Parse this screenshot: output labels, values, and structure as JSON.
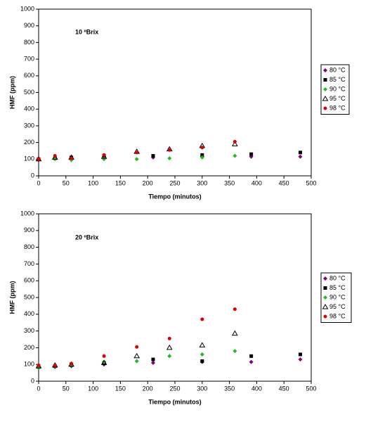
{
  "chart_data": [
    {
      "type": "scatter",
      "annotation": "10 ºBrix",
      "xlabel": "Tiempo (minutos)",
      "ylabel": "HMF (ppm)",
      "xlim": [
        0,
        500
      ],
      "xticks": [
        0,
        50,
        100,
        150,
        200,
        250,
        300,
        350,
        400,
        450,
        500
      ],
      "ylim": [
        0,
        1000
      ],
      "yticks": [
        0,
        100,
        200,
        300,
        400,
        500,
        600,
        700,
        800,
        900,
        1000
      ],
      "legend": "right",
      "series": [
        {
          "name": "80 °C",
          "color": "#800080",
          "marker": "diamond",
          "x": [
            0,
            30,
            60,
            120,
            210,
            300,
            390,
            480
          ],
          "values": [
            95,
            105,
            105,
            115,
            110,
            115,
            115,
            115
          ]
        },
        {
          "name": "85 °C",
          "color": "#000000",
          "marker": "square",
          "x": [
            0,
            30,
            60,
            120,
            210,
            300,
            390,
            480
          ],
          "values": [
            100,
            105,
            110,
            120,
            120,
            125,
            130,
            140
          ]
        },
        {
          "name": "90 °C",
          "color": "#22bb22",
          "marker": "diamond",
          "x": [
            0,
            30,
            60,
            120,
            180,
            240,
            300,
            360
          ],
          "values": [
            100,
            100,
            95,
            100,
            100,
            105,
            110,
            120
          ]
        },
        {
          "name": "95 °C",
          "color": "#000000",
          "marker": "triangle",
          "x": [
            0,
            30,
            60,
            120,
            180,
            240,
            300,
            360
          ],
          "values": [
            100,
            110,
            110,
            115,
            145,
            160,
            180,
            190
          ]
        },
        {
          "name": "98 °C",
          "color": "#dd0000",
          "marker": "circle",
          "x": [
            0,
            30,
            60,
            120,
            180,
            240,
            300,
            360
          ],
          "values": [
            100,
            120,
            105,
            125,
            140,
            155,
            170,
            205
          ]
        }
      ]
    },
    {
      "type": "scatter",
      "annotation": "20 ºBrix",
      "xlabel": "Tiempo (minutos)",
      "ylabel": "HMF (ppm)",
      "xlim": [
        0,
        500
      ],
      "xticks": [
        0,
        50,
        100,
        150,
        200,
        250,
        300,
        350,
        400,
        450,
        500
      ],
      "ylim": [
        0,
        1000
      ],
      "yticks": [
        0,
        100,
        200,
        300,
        400,
        500,
        600,
        700,
        800,
        900,
        1000
      ],
      "legend": "right",
      "series": [
        {
          "name": "80 °C",
          "color": "#800080",
          "marker": "diamond",
          "x": [
            0,
            30,
            60,
            120,
            210,
            300,
            390,
            480
          ],
          "values": [
            80,
            85,
            90,
            100,
            110,
            115,
            115,
            130
          ]
        },
        {
          "name": "85 °C",
          "color": "#000000",
          "marker": "square",
          "x": [
            0,
            30,
            60,
            120,
            210,
            300,
            390,
            480
          ],
          "values": [
            85,
            90,
            100,
            110,
            130,
            120,
            150,
            160
          ]
        },
        {
          "name": "90 °C",
          "color": "#22bb22",
          "marker": "diamond",
          "x": [
            0,
            30,
            60,
            120,
            180,
            240,
            300,
            360
          ],
          "values": [
            80,
            90,
            95,
            115,
            120,
            150,
            160,
            180
          ]
        },
        {
          "name": "95 °C",
          "color": "#000000",
          "marker": "triangle",
          "x": [
            0,
            30,
            60,
            120,
            180,
            240,
            300,
            360
          ],
          "values": [
            90,
            95,
            100,
            110,
            150,
            200,
            215,
            285
          ]
        },
        {
          "name": "98 °C",
          "color": "#dd0000",
          "marker": "circle",
          "x": [
            0,
            30,
            60,
            120,
            180,
            240,
            300,
            360
          ],
          "values": [
            95,
            95,
            105,
            150,
            205,
            255,
            370,
            430
          ]
        }
      ]
    }
  ]
}
